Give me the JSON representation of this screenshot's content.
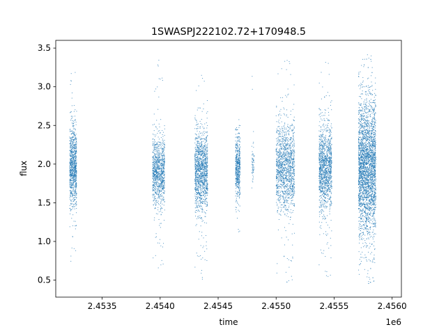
{
  "chart_data": {
    "type": "scatter",
    "title": "1SWASPJ222102.72+170948.5",
    "xlabel": "time",
    "ylabel": "flux",
    "x_offset_label": "1e6",
    "xlim": [
      2453100,
      2456080
    ],
    "ylim": [
      0.28,
      3.6
    ],
    "x_ticks": [
      2453500,
      2454000,
      2454500,
      2455000,
      2455500,
      2456000
    ],
    "x_tick_labels": [
      "2.4535",
      "2.4540",
      "2.4545",
      "2.4550",
      "2.4555",
      "2.4560"
    ],
    "y_ticks": [
      0.5,
      1.0,
      1.5,
      2.0,
      2.5,
      3.0,
      3.5
    ],
    "y_tick_labels": [
      "0.5",
      "1.0",
      "1.5",
      "2.0",
      "2.5",
      "3.0",
      "3.5"
    ],
    "grid": false,
    "legend": false,
    "marker_color": "#1f77b4",
    "series": [
      {
        "clusters": [
          {
            "x_start": 2453220,
            "x_end": 2453280,
            "center": 1.95,
            "core_low": 1.4,
            "core_high": 2.45,
            "tail_low": 0.65,
            "tail_high": 3.25,
            "n": 900
          },
          {
            "x_start": 2453935,
            "x_end": 2454040,
            "center": 1.9,
            "core_low": 1.5,
            "core_high": 2.35,
            "tail_low": 0.65,
            "tail_high": 3.35,
            "n": 1000
          },
          {
            "x_start": 2454300,
            "x_end": 2454410,
            "center": 1.9,
            "core_low": 1.4,
            "core_high": 2.4,
            "tail_low": 0.48,
            "tail_high": 3.18,
            "n": 1300
          },
          {
            "x_start": 2454650,
            "x_end": 2454690,
            "center": 1.95,
            "core_low": 1.55,
            "core_high": 2.35,
            "tail_low": 1.1,
            "tail_high": 2.6,
            "n": 500
          },
          {
            "x_start": 2454790,
            "x_end": 2454810,
            "center": 2.0,
            "core_low": 1.7,
            "core_high": 2.3,
            "tail_low": 0.75,
            "tail_high": 3.28,
            "n": 60
          },
          {
            "x_start": 2455000,
            "x_end": 2455160,
            "center": 1.95,
            "core_low": 1.35,
            "core_high": 2.45,
            "tail_low": 0.44,
            "tail_high": 3.42,
            "n": 1400
          },
          {
            "x_start": 2455370,
            "x_end": 2455480,
            "center": 1.95,
            "core_low": 1.4,
            "core_high": 2.5,
            "tail_low": 0.5,
            "tail_high": 3.35,
            "n": 1300
          },
          {
            "x_start": 2455710,
            "x_end": 2455860,
            "center": 1.95,
            "core_low": 1.1,
            "core_high": 2.8,
            "tail_low": 0.42,
            "tail_high": 3.45,
            "n": 3200
          }
        ]
      }
    ]
  }
}
